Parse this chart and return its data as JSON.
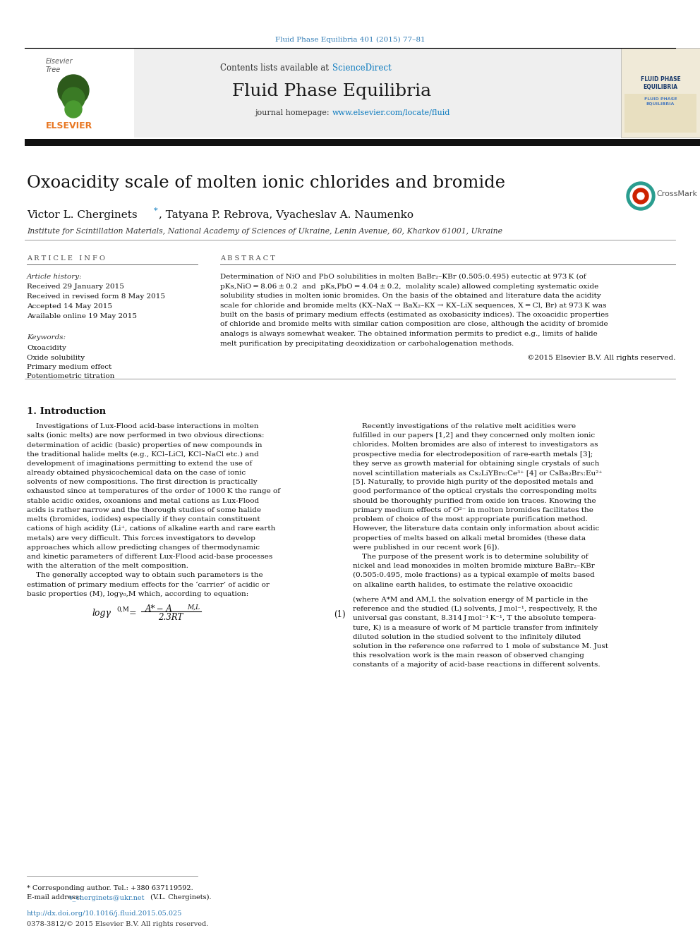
{
  "journal_ref": "Fluid Phase Equilibria 401 (2015) 77–81",
  "contents_text": "Contents lists available at ",
  "sciencedirect": "ScienceDirect",
  "journal_name": "Fluid Phase Equilibria",
  "journal_homepage_text": "journal homepage: ",
  "journal_url": "www.elsevier.com/locate/fluid",
  "title": "Oxoacidity scale of molten ionic chlorides and bromide",
  "affiliation": "Institute for Scintillation Materials, National Academy of Sciences of Ukraine, Lenin Avenue, 60, Kharkov 61001, Ukraine",
  "article_history_label": "Article history:",
  "received1": "Received 29 January 2015",
  "received2": "Received in revised form 8 May 2015",
  "accepted": "Accepted 14 May 2015",
  "available": "Available online 19 May 2015",
  "keywords_label": "Keywords:",
  "keywords": [
    "Oxoacidity",
    "Oxide solubility",
    "Primary medium effect",
    "Potentiometric titration"
  ],
  "copyright": "©2015 Elsevier B.V. All rights reserved.",
  "footnote_phone": "* Corresponding author. Tel.: +380 637119592.",
  "footnote_email_label": "E-mail address: ",
  "footnote_email": "v_cherginets@ukr.net",
  "footnote_email_end": " (V.L. Cherginets).",
  "doi": "http://dx.doi.org/10.1016/j.fluid.2015.05.025",
  "issn": "0378-3812/© 2015 Elsevier B.V. All rights reserved.",
  "bg_color": "#ffffff",
  "orange_color": "#e87722",
  "sciencedirect_blue": "#0a7abf",
  "link_blue": "#2e7bb5",
  "abstract_lines": [
    "Determination of NiO and PbO solubilities in molten BaBr₂–KBr (0.505:0.495) eutectic at 973 K (of",
    "pKs,NiO = 8.06 ± 0.2  and  pKs,PbO = 4.04 ± 0.2,  molality scale) allowed completing systematic oxide",
    "solubility studies in molten ionic bromides. On the basis of the obtained and literature data the acidity",
    "scale for chloride and bromide melts (KX–NaX → BaX₂–KX → KX–LiX sequences, X = Cl, Br) at 973 K was",
    "built on the basis of primary medium effects (estimated as oxobasicity indices). The oxoacidic properties",
    "of chloride and bromide melts with similar cation composition are close, although the acidity of bromide",
    "analogs is always somewhat weaker. The obtained information permits to predict e.g., limits of halide",
    "melt purification by precipitating deoxidization or carbohalogenation methods."
  ],
  "intro_lines_col1": [
    "    Investigations of Lux-Flood acid-base interactions in molten",
    "salts (ionic melts) are now performed in two obvious directions:",
    "determination of acidic (basic) properties of new compounds in",
    "the traditional halide melts (e.g., KCl–LiCl, KCl–NaCl etc.) and",
    "development of imaginations permitting to extend the use of",
    "already obtained physicochemical data on the case of ionic",
    "solvents of new compositions. The first direction is practically",
    "exhausted since at temperatures of the order of 1000 K the range of",
    "stable acidic oxides, oxoanions and metal cations as Lux-Flood",
    "acids is rather narrow and the thorough studies of some halide",
    "melts (bromides, iodides) especially if they contain constituent",
    "cations of high acidity (Li⁺, cations of alkaline earth and rare earth",
    "metals) are very difficult. This forces investigators to develop",
    "approaches which allow predicting changes of thermodynamic",
    "and kinetic parameters of different Lux-Flood acid-base processes",
    "with the alteration of the melt composition.",
    "    The generally accepted way to obtain such parameters is the",
    "estimation of primary medium effects for the ‘carrier’ of acidic or",
    "basic properties (M), logγ₀,M which, according to equation:"
  ],
  "eq_explanation_lines": [
    "(where A*M and AM,L the solvation energy of M particle in the",
    "reference and the studied (L) solvents, J mol⁻¹, respectively, R the",
    "universal gas constant, 8.314 J mol⁻¹ K⁻¹, T the absolute tempera-",
    "ture, K) is a measure of work of M particle transfer from infinitely",
    "diluted solution in the studied solvent to the infinitely diluted",
    "solution in the reference one referred to 1 mole of substance M. Just",
    "this resolvation work is the main reason of observed changing",
    "constants of a majority of acid-base reactions in different solvents."
  ],
  "col2_lines": [
    "    Recently investigations of the relative melt acidities were",
    "fulfilled in our papers [1,2] and they concerned only molten ionic",
    "chlorides. Molten bromides are also of interest to investigators as",
    "prospective media for electrodeposition of rare-earth metals [3];",
    "they serve as growth material for obtaining single crystals of such",
    "novel scintillation materials as Cs₂LiYBr₆:Ce³⁺ [4] or CsBa₂Br₅:Eu²⁺",
    "[5]. Naturally, to provide high purity of the deposited metals and",
    "good performance of the optical crystals the corresponding melts",
    "should be thoroughly purified from oxide ion traces. Knowing the",
    "primary medium effects of O²⁻ in molten bromides facilitates the",
    "problem of choice of the most appropriate purification method.",
    "However, the literature data contain only information about acidic",
    "properties of melts based on alkali metal bromides (these data",
    "were published in our recent work [6]).",
    "    The purpose of the present work is to determine solubility of",
    "nickel and lead monoxides in molten bromide mixture BaBr₂–KBr",
    "(0.505:0.495, mole fractions) as a typical example of melts based",
    "on alkaline earth halides, to estimate the relative oxoacidic"
  ]
}
